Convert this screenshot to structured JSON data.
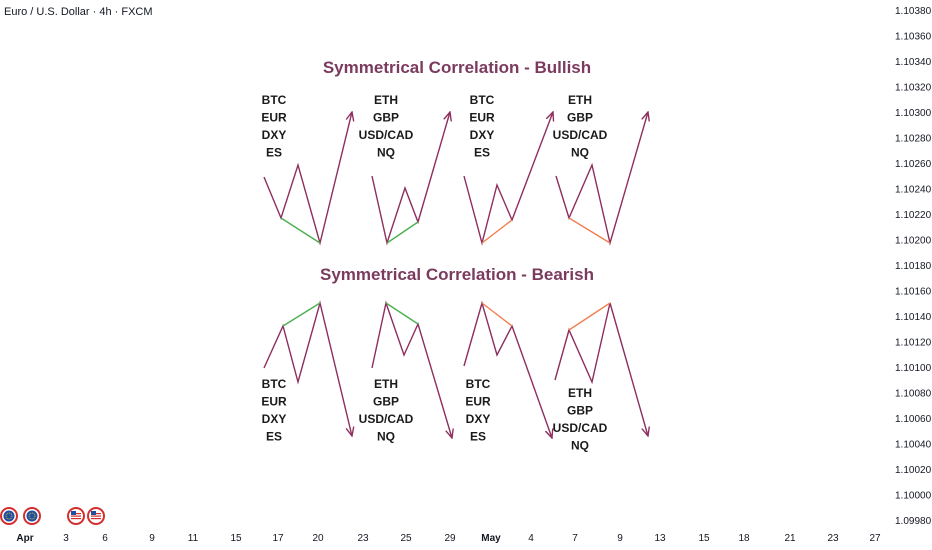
{
  "header": {
    "symbol_title": "Euro / U.S. Dollar · 4h · FXCM"
  },
  "colors": {
    "pattern_line": "#8e2e5e",
    "green_segment": "#4caf50",
    "orange_segment": "#f08050",
    "title_color": "#7b3b5e",
    "flag_red": "#d32f2f",
    "flag_blue": "#1e4fa0"
  },
  "icons": [
    "eu-flag-icon",
    "eu-flag-icon",
    "us-flag-icon",
    "us-flag-icon"
  ],
  "chart_data": {
    "type": "line",
    "title": "",
    "price_axis": {
      "ticks": [
        "1.10380",
        "1.10360",
        "1.10340",
        "1.10320",
        "1.10300",
        "1.10280",
        "1.10260",
        "1.10240",
        "1.10220",
        "1.10200",
        "1.10180",
        "1.10160",
        "1.10140",
        "1.10120",
        "1.10100",
        "1.10080",
        "1.10060",
        "1.10040",
        "1.10020",
        "1.10000",
        "1.09980"
      ],
      "range": [
        1.0998,
        1.1038
      ]
    },
    "time_axis": {
      "labels": [
        {
          "text": "Apr",
          "major": true
        },
        {
          "text": "3"
        },
        {
          "text": "6"
        },
        {
          "text": "9"
        },
        {
          "text": "11"
        },
        {
          "text": "15"
        },
        {
          "text": "17"
        },
        {
          "text": "20"
        },
        {
          "text": "23"
        },
        {
          "text": "25"
        },
        {
          "text": "29"
        },
        {
          "text": "May",
          "major": true
        },
        {
          "text": "4"
        },
        {
          "text": "7"
        },
        {
          "text": "9"
        },
        {
          "text": "13"
        },
        {
          "text": "15"
        },
        {
          "text": "18"
        },
        {
          "text": "21"
        },
        {
          "text": "23"
        },
        {
          "text": "27"
        }
      ]
    },
    "annotations": {
      "bullish": {
        "title": "Symmetrical Correlation - Bullish",
        "groups": [
          {
            "assets": [
              "BTC",
              "EUR",
              "DXY",
              "ES"
            ],
            "highlight": "green"
          },
          {
            "assets": [
              "ETH",
              "GBP",
              "USD/CAD",
              "NQ"
            ],
            "highlight": "green"
          },
          {
            "assets": [
              "BTC",
              "EUR",
              "DXY",
              "ES"
            ],
            "highlight": "orange"
          },
          {
            "assets": [
              "ETH",
              "GBP",
              "USD/CAD",
              "NQ"
            ],
            "highlight": "orange"
          }
        ]
      },
      "bearish": {
        "title": "Symmetrical Correlation - Bearish",
        "groups": [
          {
            "assets": [
              "BTC",
              "EUR",
              "DXY",
              "ES"
            ],
            "highlight": "green"
          },
          {
            "assets": [
              "ETH",
              "GBP",
              "USD/CAD",
              "NQ"
            ],
            "highlight": "green"
          },
          {
            "assets": [
              "BTC",
              "EUR",
              "DXY",
              "ES"
            ],
            "highlight": "orange"
          },
          {
            "assets": [
              "ETH",
              "GBP",
              "USD/CAD",
              "NQ"
            ],
            "highlight": "orange"
          }
        ]
      }
    }
  }
}
